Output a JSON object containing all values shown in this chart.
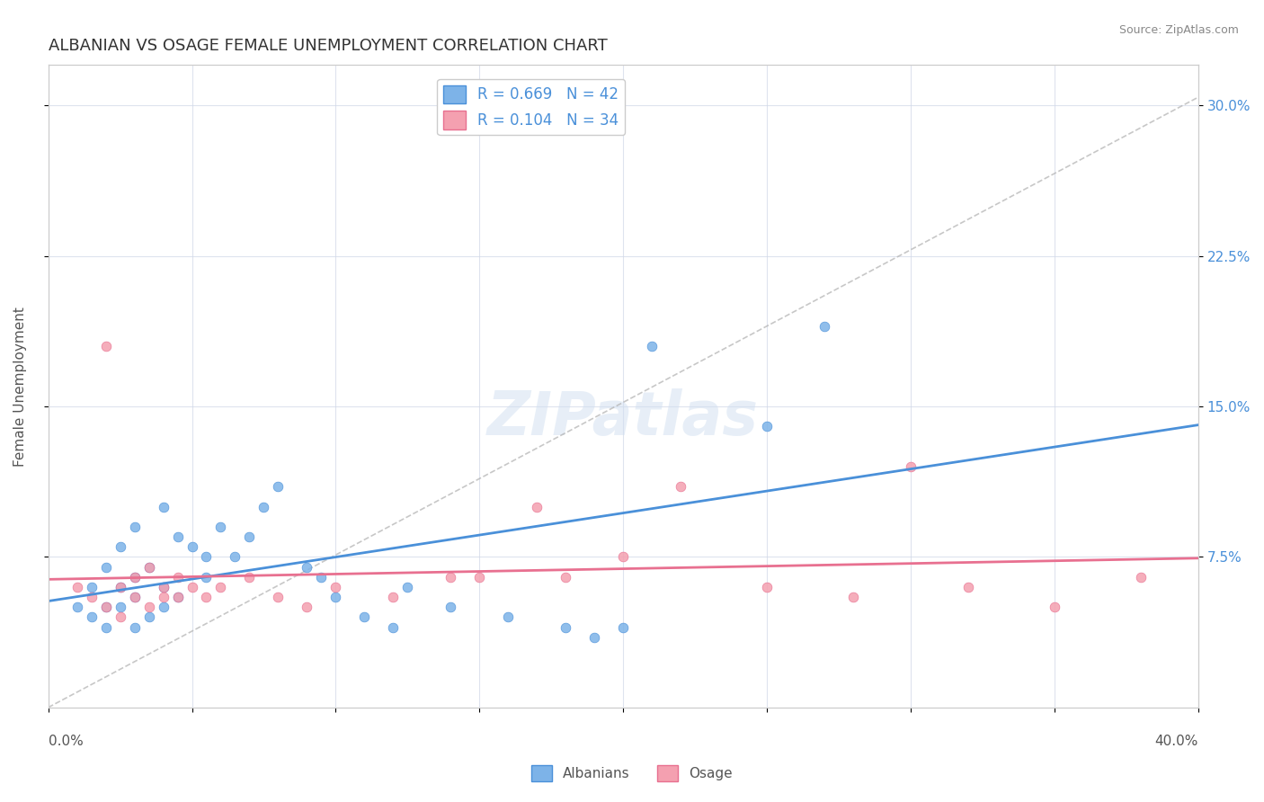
{
  "title": "ALBANIAN VS OSAGE FEMALE UNEMPLOYMENT CORRELATION CHART",
  "source": "Source: ZipAtlas.com",
  "ylabel": "Female Unemployment",
  "ytick_labels": [
    "7.5%",
    "15.0%",
    "22.5%",
    "30.0%"
  ],
  "ytick_values": [
    0.075,
    0.15,
    0.225,
    0.3
  ],
  "xlim": [
    0.0,
    0.4
  ],
  "ylim": [
    0.0,
    0.32
  ],
  "legend_label1": "Albanians",
  "legend_label2": "Osage",
  "R1": 0.669,
  "N1": 42,
  "R2": 0.104,
  "N2": 34,
  "color_blue": "#7db3e8",
  "color_pink": "#f4a0b0",
  "color_blue_line": "#4a90d9",
  "color_pink_line": "#e87090",
  "color_ref_line": "#b0b0b0",
  "watermark_text": "ZIPatlas",
  "albanians_x": [
    0.01,
    0.015,
    0.015,
    0.02,
    0.02,
    0.02,
    0.025,
    0.025,
    0.025,
    0.03,
    0.03,
    0.03,
    0.03,
    0.035,
    0.035,
    0.04,
    0.04,
    0.04,
    0.045,
    0.045,
    0.05,
    0.055,
    0.055,
    0.06,
    0.065,
    0.07,
    0.075,
    0.08,
    0.09,
    0.095,
    0.1,
    0.11,
    0.12,
    0.125,
    0.14,
    0.16,
    0.18,
    0.19,
    0.2,
    0.21,
    0.25,
    0.27
  ],
  "albanians_y": [
    0.05,
    0.045,
    0.06,
    0.04,
    0.05,
    0.07,
    0.05,
    0.06,
    0.08,
    0.04,
    0.055,
    0.065,
    0.09,
    0.045,
    0.07,
    0.05,
    0.06,
    0.1,
    0.055,
    0.085,
    0.08,
    0.065,
    0.075,
    0.09,
    0.075,
    0.085,
    0.1,
    0.11,
    0.07,
    0.065,
    0.055,
    0.045,
    0.04,
    0.06,
    0.05,
    0.045,
    0.04,
    0.035,
    0.04,
    0.18,
    0.14,
    0.19
  ],
  "osage_x": [
    0.01,
    0.015,
    0.02,
    0.025,
    0.03,
    0.035,
    0.04,
    0.045,
    0.05,
    0.055,
    0.06,
    0.07,
    0.08,
    0.09,
    0.1,
    0.12,
    0.14,
    0.15,
    0.17,
    0.18,
    0.2,
    0.22,
    0.25,
    0.28,
    0.3,
    0.32,
    0.35,
    0.38,
    0.02,
    0.025,
    0.03,
    0.035,
    0.04,
    0.045
  ],
  "osage_y": [
    0.06,
    0.055,
    0.05,
    0.06,
    0.065,
    0.07,
    0.055,
    0.065,
    0.06,
    0.055,
    0.06,
    0.065,
    0.055,
    0.05,
    0.06,
    0.055,
    0.065,
    0.065,
    0.1,
    0.065,
    0.075,
    0.11,
    0.06,
    0.055,
    0.12,
    0.06,
    0.05,
    0.065,
    0.18,
    0.045,
    0.055,
    0.05,
    0.06,
    0.055
  ]
}
